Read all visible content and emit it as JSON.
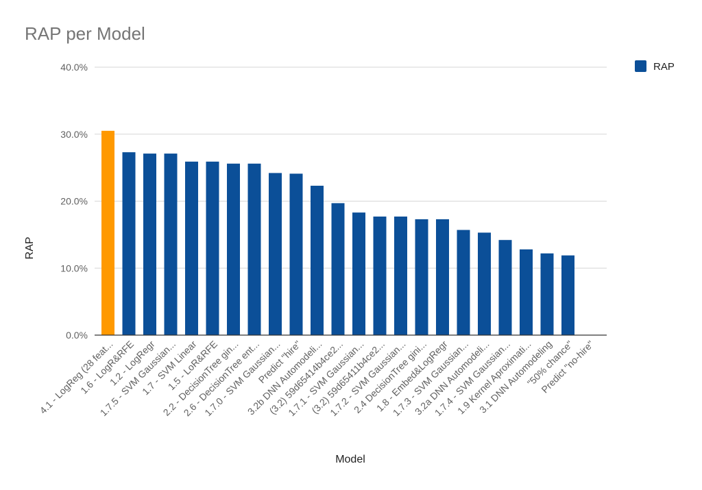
{
  "chart_data": {
    "type": "bar",
    "title": "RAP per Model",
    "xlabel": "Model",
    "ylabel": "RAP",
    "ylim": [
      0,
      40
    ],
    "yticks": [
      "0.0%",
      "10.0%",
      "20.0%",
      "30.0%",
      "40.0%"
    ],
    "ytick_values": [
      0,
      10,
      20,
      30,
      40
    ],
    "legend_position": "top-right",
    "grid": true,
    "categories": [
      "4.1 - LogReg (28 feat...",
      "1.6 - LogR&RFE",
      "1.2 - LogRegr",
      "1.7.5 - SVM Gaussian...",
      "1.7 - SVM Linear",
      "1.5 - LoR&RFE",
      "2.2 - DecisionTree gin...",
      "2.6 - DecisionTree ent...",
      "1.7.0 - SVM Gaussian...",
      "Predict \"hire\"",
      "3.2b DNN Automodeli...",
      "(3.2) 59d65414b4ce2...",
      "1.7.1 - SVM Gaussian...",
      "(3.2) 59d65411b4ce2...",
      "1.7.2 - SVM Gaussian...",
      "2.4 DecisionTree gini...",
      "1.8 - Embed&LogRegr",
      "1.7.3 - SVM Gaussian...",
      "3.2a DNN Automodeli...",
      "1.7.4 - SVM Gaussian...",
      "1.9 Kernel Aproximati...",
      "3.1 DNN Automodeling",
      "\"50% chance\"",
      "Predict \"no-hire\""
    ],
    "series": [
      {
        "name": "RAP",
        "color": "#0b4f98",
        "values": [
          30.5,
          27.3,
          27.1,
          27.1,
          25.9,
          25.9,
          25.6,
          25.6,
          24.2,
          24.1,
          22.3,
          19.7,
          18.3,
          17.7,
          17.7,
          17.3,
          17.3,
          15.7,
          15.3,
          14.2,
          12.8,
          12.2,
          11.9,
          0
        ]
      }
    ],
    "highlight": {
      "index": 0,
      "color": "#ff9900"
    }
  }
}
